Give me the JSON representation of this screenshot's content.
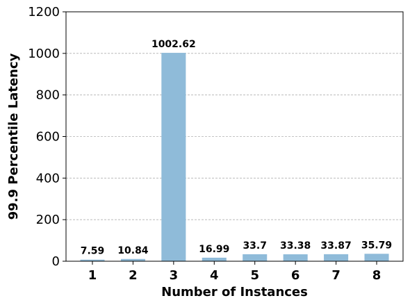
{
  "chart_data": {
    "type": "bar",
    "title": "",
    "xlabel": "Number of Instances",
    "ylabel": "99.9 Percentile Latency",
    "categories": [
      "1",
      "2",
      "3",
      "4",
      "5",
      "6",
      "7",
      "8"
    ],
    "values": [
      7.59,
      10.84,
      1002.62,
      16.99,
      33.7,
      33.38,
      33.87,
      35.79
    ],
    "data_labels": [
      "7.59",
      "10.84",
      "1002.62",
      "16.99",
      "33.7",
      "33.38",
      "33.87",
      "35.79"
    ],
    "ylim": [
      0,
      1200
    ],
    "yticks": [
      0,
      200,
      400,
      600,
      800,
      1000,
      1200
    ],
    "ytick_labels": [
      "0",
      "200",
      "400",
      "600",
      "800",
      "1000",
      "1200"
    ],
    "grid": "horizontal dashed",
    "bar_color": "#8fbbd9",
    "grid_color": "#b0b0b0"
  }
}
